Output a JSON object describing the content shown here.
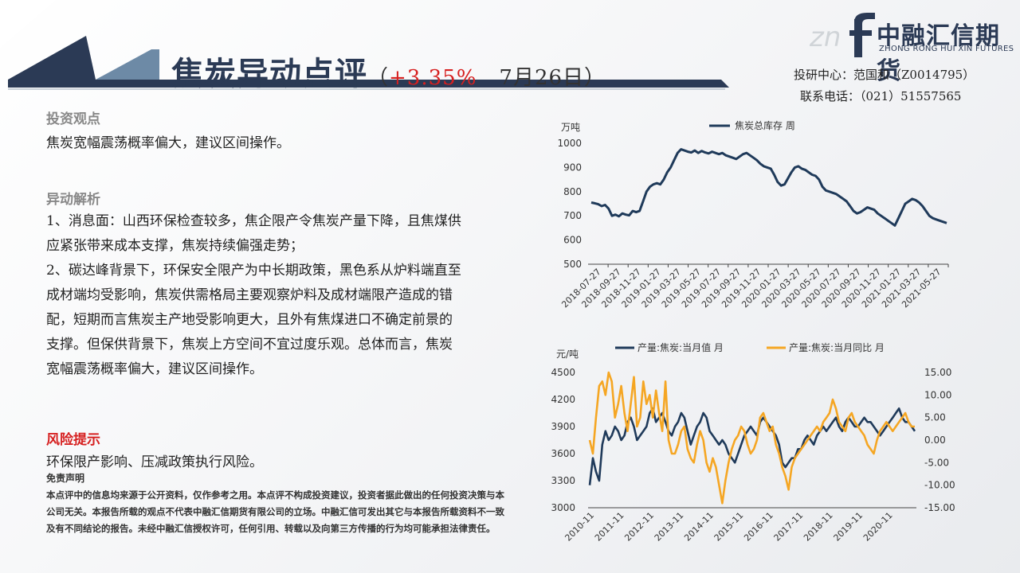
{
  "header": {
    "title": "焦炭异动点评",
    "paren_open": "（",
    "change": "+3.35%",
    "date": "7月26日",
    "paren_close": "）",
    "logo_text": "中融汇信期货",
    "logo_sub": "ZHONG RONG HUI XIN FUTURES",
    "contact_line1": "投研中心：范国和（Z0014795）",
    "contact_line2": "联系电话：（021）51557565"
  },
  "content": {
    "view_heading": "投资观点",
    "view_text": "焦炭宽幅震荡概率偏大，建议区间操作。",
    "analysis_heading": "异动解析",
    "analysis_lines": [
      "1、消息面：山西环保检查较多，焦企限产令焦炭产量下降，且焦煤供",
      "应紧张带来成本支撑，焦炭持续偏强走势；",
      "2、碳达峰背景下，环保安全限产为中长期政策，黑色系从炉料端直至",
      "成材端均受影响，焦炭供需格局主要观察炉料及成材端限产造成的错",
      "配，短期而言焦炭主产地受影响更大，且外有焦煤进口不确定前景的",
      "支撑。但保供背景下，焦炭上方空间不宜过度乐观。总体而言，焦炭",
      "宽幅震荡概率偏大，建议区间操作。"
    ],
    "risk_heading": "风险提示",
    "risk_text": "环保限产影响、压减政策执行风险。",
    "disclaimer_title": "免责声明",
    "disclaimer_text": "本点评中的信息均来源于公开资料，仅作参考之用。本点评不构成投资建议，投资者据此做出的任何投资决策与本公司无关。本报告所载的观点不代表中融汇信期货有限公司的立场。中融汇信可发出其它与本报告所载资料不一致及有不同结论的报告。未经中融汇信授权许可，任何引用、转载以及向第三方传播的行为均可能承担法律责任。"
  },
  "colors": {
    "navy": "#1f3a5a",
    "orange": "#f5a623",
    "red": "#d62020",
    "title": "#2b3a55"
  },
  "chart_data": [
    {
      "type": "line",
      "unit_label": "万吨",
      "ylim": [
        500,
        1000
      ],
      "yticks": [
        500,
        600,
        700,
        800,
        900,
        1000
      ],
      "xlabels": [
        "2018-07-27",
        "2018-09-27",
        "2018-11-27",
        "2019-01-27",
        "2019-03-27",
        "2019-05-27",
        "2019-07-27",
        "2019-09-27",
        "2019-11-27",
        "2020-01-27",
        "2020-03-27",
        "2020-05-27",
        "2020-07-27",
        "2020-09-27",
        "2020-11-27",
        "2021-01-27",
        "2021-03-27",
        "2021-05-27"
      ],
      "legend": "top",
      "series": [
        {
          "name": "焦炭总库存 周",
          "color": "#1f3a5a",
          "values": [
            755,
            752,
            748,
            740,
            745,
            730,
            700,
            705,
            698,
            710,
            705,
            702,
            720,
            715,
            720,
            760,
            800,
            820,
            830,
            835,
            830,
            850,
            880,
            900,
            930,
            960,
            975,
            970,
            965,
            962,
            970,
            960,
            968,
            962,
            958,
            965,
            960,
            955,
            960,
            950,
            945,
            940,
            935,
            945,
            955,
            960,
            950,
            940,
            930,
            915,
            905,
            900,
            895,
            870,
            840,
            825,
            830,
            855,
            880,
            900,
            905,
            895,
            890,
            880,
            870,
            865,
            850,
            820,
            805,
            800,
            795,
            790,
            780,
            770,
            760,
            740,
            720,
            710,
            715,
            725,
            735,
            730,
            725,
            710,
            700,
            690,
            680,
            670,
            660,
            690,
            720,
            750,
            760,
            770,
            765,
            755,
            740,
            720,
            700,
            690,
            685,
            680,
            675,
            670
          ]
        }
      ]
    },
    {
      "type": "line",
      "unit_label": "元/吨",
      "ylim": [
        3000,
        4500
      ],
      "yticks": [
        3000,
        3300,
        3600,
        3900,
        4200,
        4500
      ],
      "y2lim": [
        -15,
        15
      ],
      "y2ticks": [
        "-15.00",
        "-10.00",
        "-5.00",
        "0.00",
        "5.00",
        "10.00",
        "15.00"
      ],
      "xlabels": [
        "2010-11",
        "2011-11",
        "2012-11",
        "2013-11",
        "2014-11",
        "2015-11",
        "2016-11",
        "2017-11",
        "2018-11",
        "2019-11",
        "2020-11"
      ],
      "legend": "top",
      "series": [
        {
          "name": "产量:焦炭:当月值 月",
          "color": "#1f3a5a",
          "axis": "left",
          "values": [
            3250,
            3550,
            3400,
            3300,
            3700,
            3850,
            3750,
            3800,
            3900,
            3850,
            3750,
            3800,
            3950,
            4000,
            3900,
            3750,
            3800,
            3850,
            3900,
            4050,
            4100,
            3950,
            4000,
            4050,
            3950,
            3850,
            3800,
            3900,
            3950,
            4050,
            4000,
            3850,
            3700,
            3800,
            3900,
            3950,
            4050,
            4000,
            3850,
            3800,
            3750,
            3700,
            3750,
            3700,
            3600,
            3550,
            3500,
            3600,
            3700,
            3800,
            3850,
            3900,
            3850,
            3800,
            3950,
            4000,
            3950,
            3900,
            3850,
            3800,
            3700,
            3500,
            3450,
            3500,
            3550,
            3550,
            3650,
            3650,
            3750,
            3800,
            3750,
            3700,
            3800,
            3850,
            3900,
            3850,
            3900,
            3950,
            4000,
            3900,
            3850,
            3950,
            4000,
            3950,
            3900,
            3900,
            3950,
            4000,
            3950,
            3950,
            3900,
            3850,
            3800,
            3850,
            3900,
            3950,
            4000,
            4050,
            4100,
            4000,
            3950,
            3950,
            3900,
            3850
          ]
        },
        {
          "name": "产量:焦炭:当月同比 月",
          "color": "#f5a623",
          "axis": "right",
          "values": [
            0,
            -3,
            5,
            12,
            13,
            10,
            15,
            13,
            5,
            8,
            12,
            6,
            2,
            8,
            14,
            3,
            5,
            13,
            8,
            10,
            5,
            11,
            6,
            2,
            13,
            0,
            -3,
            -3,
            -1,
            2,
            3,
            -2,
            -4,
            -5,
            -1,
            2,
            0,
            -5,
            -7,
            -4,
            -6,
            -10,
            -14,
            -9,
            -5,
            -2,
            0,
            1,
            3,
            2,
            -1,
            -3,
            -2,
            0,
            5,
            6,
            4,
            2,
            3,
            -1,
            -3,
            -6,
            -8,
            -11,
            -6,
            -4,
            -3,
            -2,
            -1,
            0,
            1,
            2,
            3,
            2,
            4,
            5,
            6,
            9,
            7,
            4,
            3,
            2,
            5,
            6,
            4,
            3,
            2,
            1,
            -1,
            -2,
            -3,
            0,
            2,
            3,
            4,
            3,
            2,
            3,
            4,
            5,
            6,
            4,
            3,
            3
          ]
        }
      ]
    }
  ]
}
